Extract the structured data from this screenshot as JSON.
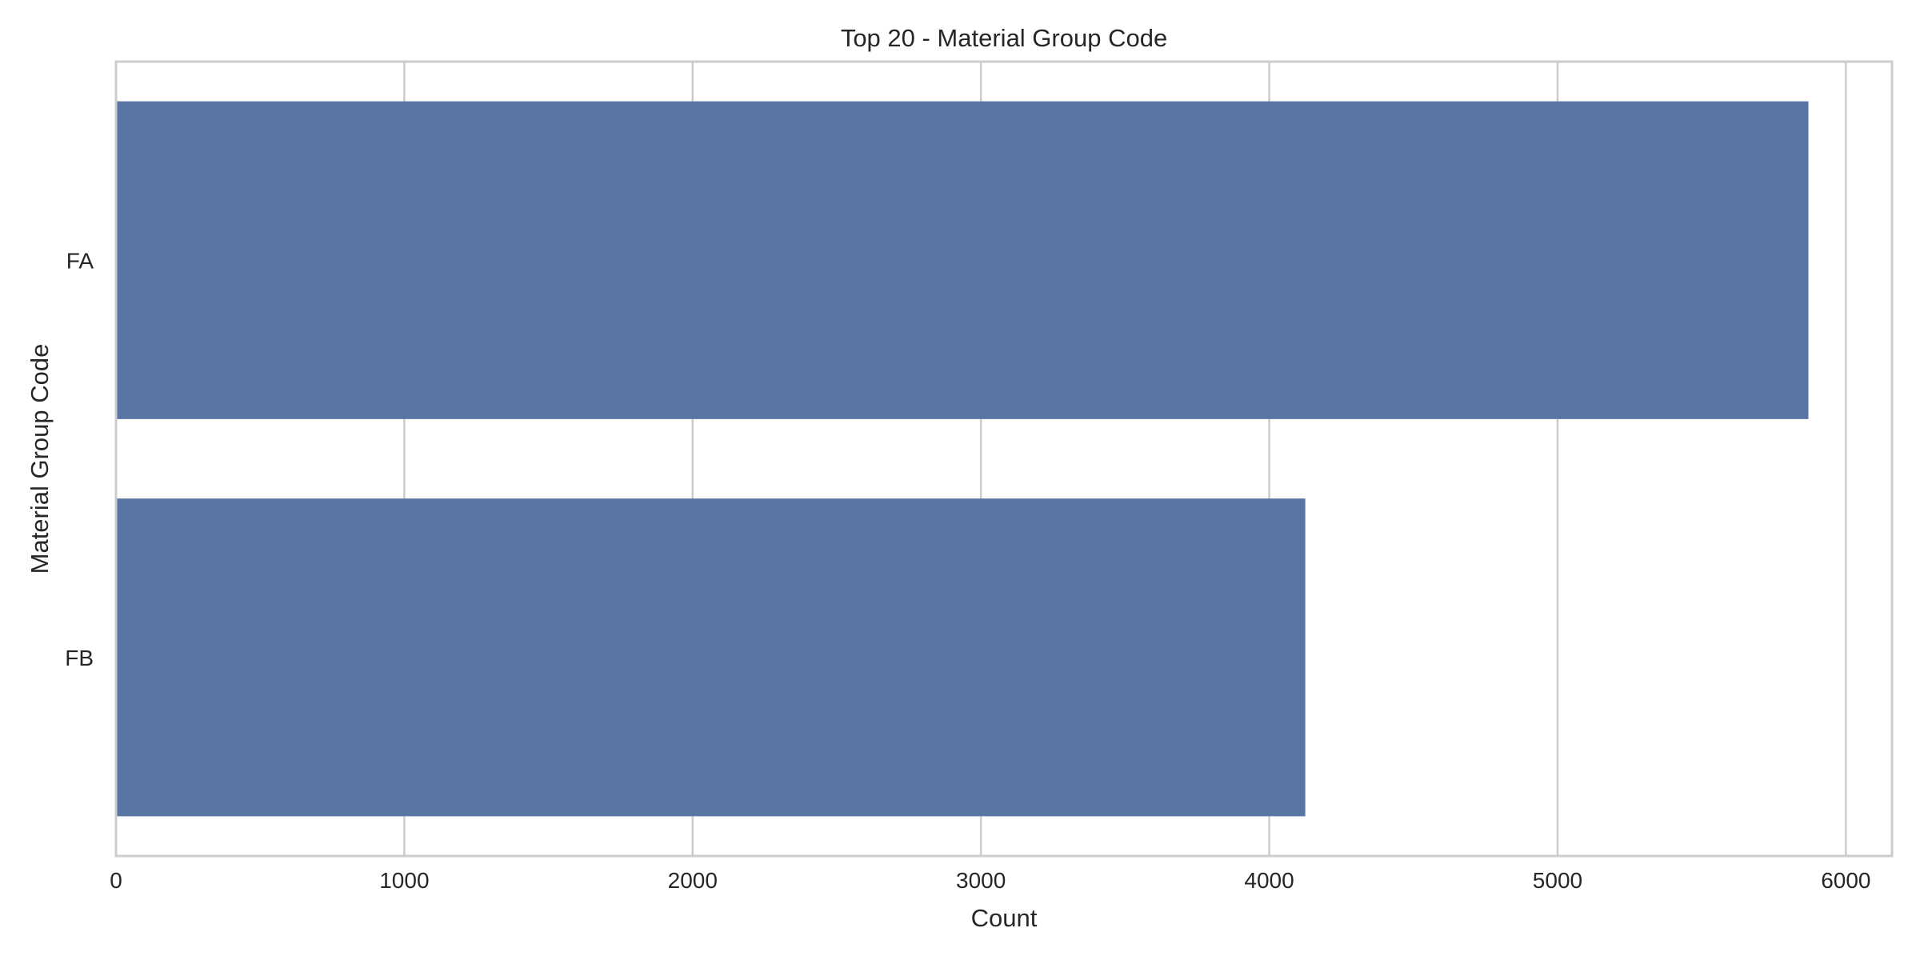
{
  "chart_data": {
    "type": "bar",
    "orientation": "horizontal",
    "title": "Top 20 - Material Group Code",
    "xlabel": "Count",
    "ylabel": "Material Group Code",
    "categories": [
      "FA",
      "FB"
    ],
    "values": [
      5870,
      4125
    ],
    "xlim": [
      0,
      6160
    ],
    "xticks": [
      0,
      1000,
      2000,
      3000,
      4000,
      5000,
      6000
    ],
    "grid": true,
    "bar_color": "#5975a4",
    "grid_color": "#cccccc",
    "spine_color": "#cccccc",
    "text_color": "#262626"
  }
}
